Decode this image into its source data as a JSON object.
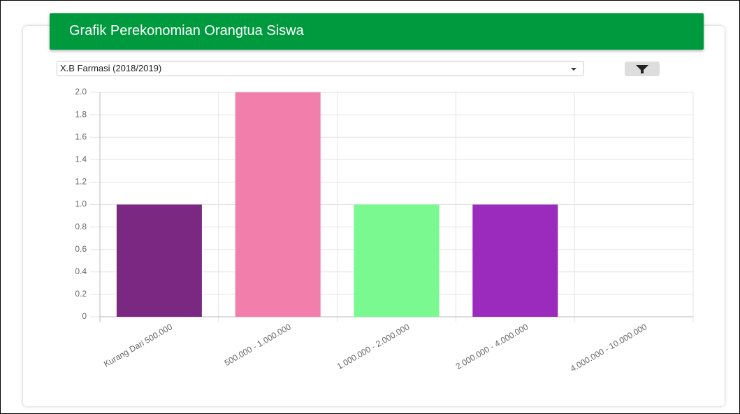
{
  "header": {
    "title": "Grafik Perekonomian Orangtua Siswa"
  },
  "filter": {
    "selected": "X.B Farmasi (2018/2019)"
  },
  "chart_data": {
    "type": "bar",
    "categories": [
      "Kurang Dari 500.000",
      "500.000 - 1.000.000",
      "1.000.000 - 2.000.000",
      "2.000.000 - 4.000.000",
      "4.000.000 - 10.000.000"
    ],
    "values": [
      1,
      2,
      1,
      1,
      0
    ],
    "colors": [
      "#7b2883",
      "#f27fab",
      "#79f98f",
      "#9a2bbd",
      "#3c8dbc"
    ],
    "ylim": [
      0,
      2
    ],
    "yticks": [
      0,
      0.2,
      0.4,
      0.6,
      0.8,
      {
        "value": 1,
        "label": "1.0"
      },
      1.2,
      1.4,
      1.6,
      1.8,
      {
        "value": 2,
        "label": "2.0"
      }
    ],
    "grid": true
  }
}
